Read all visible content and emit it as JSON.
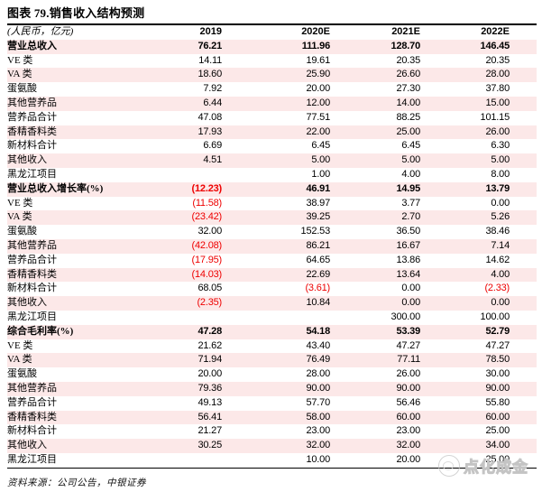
{
  "title": "图表 79.销售收入结构预测",
  "table": {
    "unit_label": "(人民币，亿元)",
    "columns": [
      "2019",
      "2020E",
      "2021E",
      "2022E"
    ],
    "rows": [
      {
        "label": "营业总收入",
        "bold": true,
        "values": [
          "76.21",
          "111.96",
          "128.70",
          "146.45"
        ]
      },
      {
        "label": "VE 类",
        "bold": false,
        "values": [
          "14.11",
          "19.61",
          "20.35",
          "20.35"
        ]
      },
      {
        "label": "VA 类",
        "bold": false,
        "values": [
          "18.60",
          "25.90",
          "26.60",
          "28.00"
        ]
      },
      {
        "label": "蛋氨酸",
        "bold": false,
        "values": [
          "7.92",
          "20.00",
          "27.30",
          "37.80"
        ]
      },
      {
        "label": "其他营养品",
        "bold": false,
        "values": [
          "6.44",
          "12.00",
          "14.00",
          "15.00"
        ]
      },
      {
        "label": "营养品合计",
        "bold": false,
        "values": [
          "47.08",
          "77.51",
          "88.25",
          "101.15"
        ]
      },
      {
        "label": "香精香料类",
        "bold": false,
        "values": [
          "17.93",
          "22.00",
          "25.00",
          "26.00"
        ]
      },
      {
        "label": "新材料合计",
        "bold": false,
        "values": [
          "6.69",
          "6.45",
          "6.45",
          "6.30"
        ]
      },
      {
        "label": "其他收入",
        "bold": false,
        "values": [
          "4.51",
          "5.00",
          "5.00",
          "5.00"
        ]
      },
      {
        "label": "黑龙江项目",
        "bold": false,
        "values": [
          "",
          "1.00",
          "4.00",
          "8.00"
        ]
      },
      {
        "label": "营业总收入增长率(%)",
        "bold": true,
        "values": [
          "(12.23)",
          "46.91",
          "14.95",
          "13.79"
        ]
      },
      {
        "label": "VE 类",
        "bold": false,
        "values": [
          "(11.58)",
          "38.97",
          "3.77",
          "0.00"
        ]
      },
      {
        "label": "VA 类",
        "bold": false,
        "values": [
          "(23.42)",
          "39.25",
          "2.70",
          "5.26"
        ]
      },
      {
        "label": "蛋氨酸",
        "bold": false,
        "values": [
          "32.00",
          "152.53",
          "36.50",
          "38.46"
        ]
      },
      {
        "label": "其他营养品",
        "bold": false,
        "values": [
          "(42.08)",
          "86.21",
          "16.67",
          "7.14"
        ]
      },
      {
        "label": "营养品合计",
        "bold": false,
        "values": [
          "(17.95)",
          "64.65",
          "13.86",
          "14.62"
        ]
      },
      {
        "label": "香精香料类",
        "bold": false,
        "values": [
          "(14.03)",
          "22.69",
          "13.64",
          "4.00"
        ]
      },
      {
        "label": "新材料合计",
        "bold": false,
        "values": [
          "68.05",
          "(3.61)",
          "0.00",
          "(2.33)"
        ]
      },
      {
        "label": "其他收入",
        "bold": false,
        "values": [
          "(2.35)",
          "10.84",
          "0.00",
          "0.00"
        ]
      },
      {
        "label": "黑龙江项目",
        "bold": false,
        "values": [
          "",
          "",
          "300.00",
          "100.00"
        ]
      },
      {
        "label": "综合毛利率(%)",
        "bold": true,
        "values": [
          "47.28",
          "54.18",
          "53.39",
          "52.79"
        ]
      },
      {
        "label": "VE 类",
        "bold": false,
        "values": [
          "21.62",
          "43.40",
          "47.27",
          "47.27"
        ]
      },
      {
        "label": "VA 类",
        "bold": false,
        "values": [
          "71.94",
          "76.49",
          "77.11",
          "78.50"
        ]
      },
      {
        "label": "蛋氨酸",
        "bold": false,
        "values": [
          "20.00",
          "28.00",
          "26.00",
          "30.00"
        ]
      },
      {
        "label": "其他营养品",
        "bold": false,
        "values": [
          "79.36",
          "90.00",
          "90.00",
          "90.00"
        ]
      },
      {
        "label": "营养品合计",
        "bold": false,
        "values": [
          "49.13",
          "57.70",
          "56.46",
          "55.80"
        ]
      },
      {
        "label": "香精香料类",
        "bold": false,
        "values": [
          "56.41",
          "58.00",
          "60.00",
          "60.00"
        ]
      },
      {
        "label": "新材料合计",
        "bold": false,
        "values": [
          "21.27",
          "23.00",
          "23.00",
          "25.00"
        ]
      },
      {
        "label": "其他收入",
        "bold": false,
        "values": [
          "30.25",
          "32.00",
          "32.00",
          "34.00"
        ]
      },
      {
        "label": "黑龙江项目",
        "bold": false,
        "values": [
          "",
          "10.00",
          "20.00",
          "25.00"
        ]
      }
    ]
  },
  "source": {
    "text": "资料来源：公司公告，中银证券"
  },
  "watermark": {
    "text": "点化成金",
    "icon": "magnifier-logo-icon"
  },
  "colors": {
    "stripe_pink": "#fce8e8",
    "negative_red": "#ee0000",
    "rule_black": "#000000",
    "watermark_gray": "#c4c4c4"
  }
}
